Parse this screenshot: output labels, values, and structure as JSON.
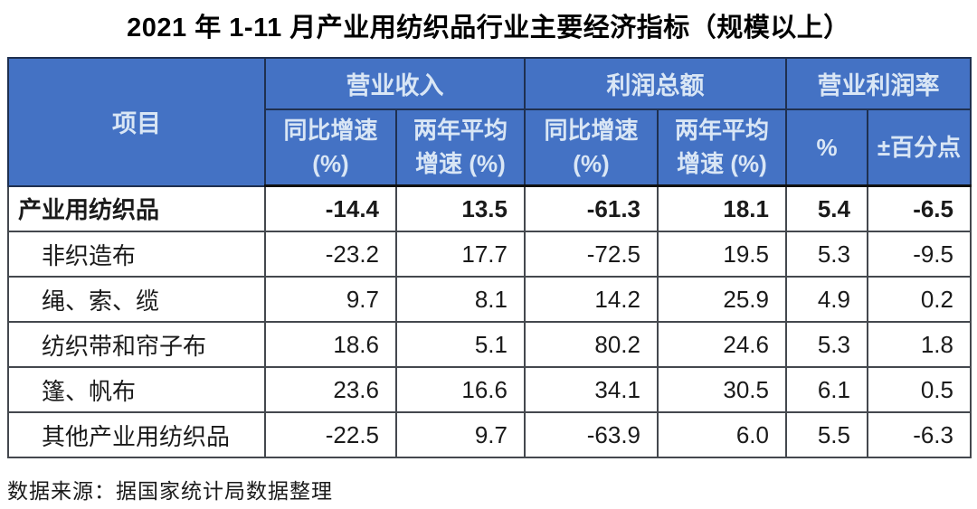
{
  "title": "2021 年 1-11 月产业用纺织品行业主要经济指标（规模以上）",
  "colors": {
    "header_bg": "#4472C4",
    "header_text": "#D9E6F5",
    "header_border": "#1F3050",
    "body_border": "#44484E",
    "body_text": "#1A1A1A"
  },
  "table": {
    "header": {
      "item": "项目",
      "group_revenue": "营业收入",
      "group_profit": "利润总额",
      "group_margin": "营业利润率",
      "sub_yoy_revenue": "同比增速 (%)",
      "sub_avg_revenue": "两年平均增速 (%)",
      "sub_yoy_profit": "同比增速 (%)",
      "sub_avg_profit": "两年平均增速 (%)",
      "sub_pct": "%",
      "sub_ppt": "±百分点"
    },
    "rows": [
      {
        "label": "产业用纺织品",
        "values": [
          "-14.4",
          "13.5",
          "-61.3",
          "18.1",
          "5.4",
          "-6.5"
        ]
      },
      {
        "label": "非织造布",
        "values": [
          "-23.2",
          "17.7",
          "-72.5",
          "19.5",
          "5.3",
          "-9.5"
        ]
      },
      {
        "label": "绳、索、缆",
        "values": [
          "9.7",
          "8.1",
          "14.2",
          "25.9",
          "4.9",
          "0.2"
        ]
      },
      {
        "label": "纺织带和帘子布",
        "values": [
          "18.6",
          "5.1",
          "80.2",
          "24.6",
          "5.3",
          "1.8"
        ]
      },
      {
        "label": "篷、帆布",
        "values": [
          "23.6",
          "16.6",
          "34.1",
          "30.5",
          "6.1",
          "0.5"
        ]
      },
      {
        "label": "其他产业用纺织品",
        "values": [
          "-22.5",
          "9.7",
          "-63.9",
          "6.0",
          "5.5",
          "-6.3"
        ]
      }
    ]
  },
  "source_note": "数据来源：据国家统计局数据整理",
  "chart_data": {
    "type": "table",
    "title": "2021 年 1-11 月产业用纺织品行业主要经济指标（规模以上）",
    "categories": [
      "产业用纺织品",
      "非织造布",
      "绳、索、缆",
      "纺织带和帘子布",
      "篷、帆布",
      "其他产业用纺织品"
    ],
    "series": [
      {
        "name": "营业收入 同比增速 (%)",
        "values": [
          -14.4,
          -23.2,
          9.7,
          18.6,
          23.6,
          -22.5
        ]
      },
      {
        "name": "营业收入 两年平均增速 (%)",
        "values": [
          13.5,
          17.7,
          8.1,
          5.1,
          16.6,
          9.7
        ]
      },
      {
        "name": "利润总额 同比增速 (%)",
        "values": [
          -61.3,
          -72.5,
          14.2,
          80.2,
          34.1,
          -63.9
        ]
      },
      {
        "name": "利润总额 两年平均增速 (%)",
        "values": [
          18.1,
          19.5,
          25.9,
          24.6,
          30.5,
          6.0
        ]
      },
      {
        "name": "营业利润率 %",
        "values": [
          5.4,
          5.3,
          4.9,
          5.3,
          6.1,
          5.5
        ]
      },
      {
        "name": "营业利润率 ±百分点",
        "values": [
          -6.5,
          -9.5,
          0.2,
          1.8,
          0.5,
          -6.3
        ]
      }
    ],
    "source": "数据来源：据国家统计局数据整理"
  }
}
